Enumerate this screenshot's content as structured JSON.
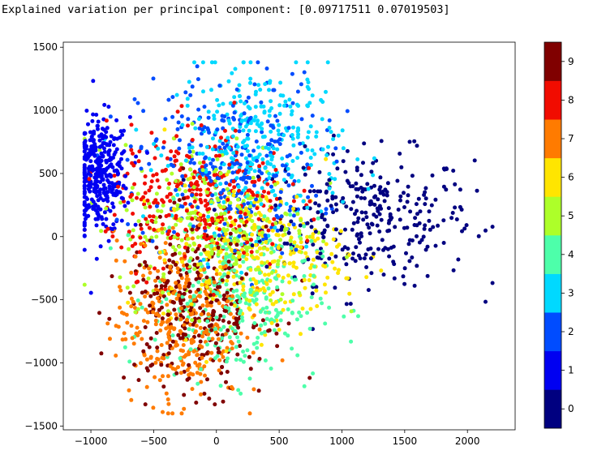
{
  "output_text": "Explained variation per principal component: [0.09717511 0.07019503]",
  "chart_data": {
    "type": "scatter",
    "title": "",
    "xlabel": "",
    "ylabel": "",
    "xlim": [
      -1220,
      2380
    ],
    "ylim": [
      -1530,
      1540
    ],
    "x_ticks": [
      -1000,
      -500,
      0,
      500,
      1000,
      1500,
      2000
    ],
    "y_ticks": [
      1500,
      1000,
      500,
      0,
      -500,
      -1000,
      -1500
    ],
    "x_tick_labels": [
      "−1000",
      "−500",
      "0",
      "500",
      "1000",
      "1500",
      "2000"
    ],
    "y_tick_labels": [
      "1500",
      "1000",
      "500",
      "0",
      "−500",
      "−1000",
      "−1500"
    ],
    "colormap": "jet",
    "colorbar": {
      "ticks": [
        0,
        1,
        2,
        3,
        4,
        5,
        6,
        7,
        8,
        9
      ],
      "tick_labels": [
        "0",
        "1",
        "2",
        "3",
        "4",
        "5",
        "6",
        "7",
        "8",
        "9"
      ],
      "colors": [
        "#000080",
        "#0000f1",
        "#004cff",
        "#00d9ff",
        "#4dffaa",
        "#adff29",
        "#ffe500",
        "#ff7b00",
        "#f10c00",
        "#800000"
      ]
    },
    "series": [
      {
        "label": "0",
        "color": "#000080",
        "center": [
          1200,
          150
        ],
        "spread": [
          420,
          260
        ],
        "count": 320
      },
      {
        "label": "1",
        "color": "#0000f1",
        "center": [
          -930,
          480
        ],
        "spread": [
          120,
          230
        ],
        "count": 360
      },
      {
        "label": "2",
        "color": "#004cff",
        "center": [
          100,
          560
        ],
        "spread": [
          360,
          360
        ],
        "count": 300
      },
      {
        "label": "3",
        "color": "#00d9ff",
        "center": [
          350,
          720
        ],
        "spread": [
          330,
          320
        ],
        "count": 320
      },
      {
        "label": "4",
        "color": "#4dffaa",
        "center": [
          150,
          -500
        ],
        "spread": [
          330,
          320
        ],
        "count": 300
      },
      {
        "label": "5",
        "color": "#adff29",
        "center": [
          0,
          100
        ],
        "spread": [
          380,
          320
        ],
        "count": 280
      },
      {
        "label": "6",
        "color": "#ffe500",
        "center": [
          300,
          -150
        ],
        "spread": [
          360,
          280
        ],
        "count": 300
      },
      {
        "label": "7",
        "color": "#ff7b00",
        "center": [
          -300,
          -650
        ],
        "spread": [
          250,
          330
        ],
        "count": 330
      },
      {
        "label": "8",
        "color": "#f10c00",
        "center": [
          -150,
          300
        ],
        "spread": [
          360,
          280
        ],
        "count": 320
      },
      {
        "label": "9",
        "color": "#800000",
        "center": [
          -150,
          -550
        ],
        "spread": [
          280,
          330
        ],
        "count": 320
      }
    ]
  }
}
